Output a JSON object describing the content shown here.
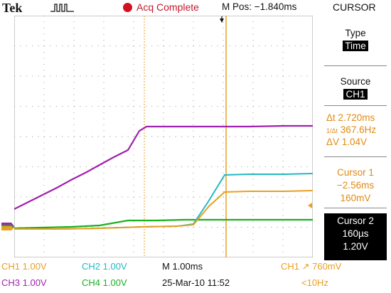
{
  "colors": {
    "ch1": "#e8a020",
    "ch2": "#24b8c4",
    "ch3": "#a020b0",
    "ch4": "#1bb020",
    "stop": "#d1121e",
    "cursor": "#e08a12"
  },
  "header": {
    "brand": "Tek",
    "acquisition_status": "Acq Complete",
    "m_pos": "M Pos: −1.840ms",
    "menu_title": "CURSOR"
  },
  "side_menu": {
    "type_label": "Type",
    "type_value": "Time",
    "source_label": "Source",
    "source_value": "CH1",
    "delta_t": "Δt 2.720ms",
    "inverse_delta_t": "367.6Hz",
    "delta_v": "ΔV 1.04V",
    "cursor1_label": "Cursor 1",
    "cursor1_time": "−2.56ms",
    "cursor1_value": "160mV",
    "cursor2_label": "Cursor 2",
    "cursor2_time": "160µs",
    "cursor2_value": "1.20V"
  },
  "status": {
    "ch1": "CH1  1.00V",
    "ch2": "CH2  1.00V",
    "ch3": "CH3  1.00V",
    "ch4": "CH4  1.00V",
    "timebase": "M 1.00ms",
    "date": "25-Mar-10 11:52",
    "trigger": "CH1  ↗  760mV",
    "frequency": "<10Hz"
  }
}
